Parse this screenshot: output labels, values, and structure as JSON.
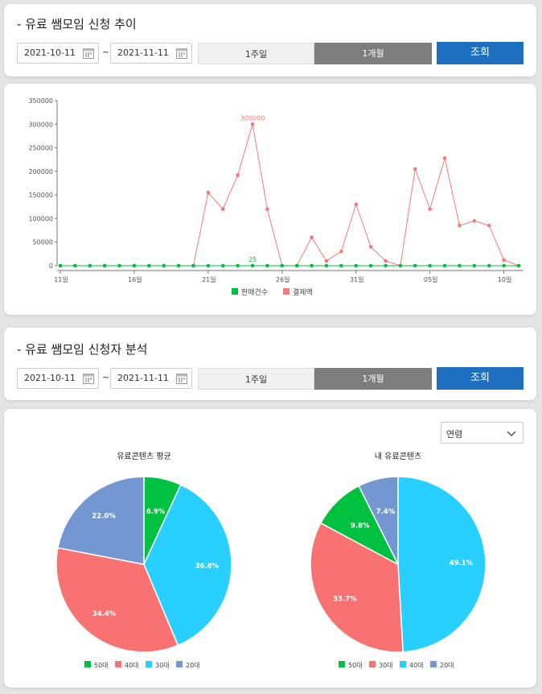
{
  "section1": {
    "title": "- 유료 쌤모임 신청 추이",
    "date_from": "2021-10-11",
    "date_to": "2021-11-11",
    "tilde": "~",
    "btn_week": "1주일",
    "btn_month": "1개월",
    "btn_search": "조회"
  },
  "section2": {
    "title": "- 유료 쌤모임 신청자 분석",
    "date_from": "2021-10-11",
    "date_to": "2021-11-11",
    "tilde": "~",
    "btn_week": "1주일",
    "btn_month": "1개월",
    "btn_search": "조회",
    "age_select": "연령"
  },
  "colors": {
    "sales_line": "#00c040",
    "payment_line": "#f47a7a",
    "pie_50": "#00c240",
    "pie_40": "#f97272",
    "pie_30": "#29cfff",
    "pie_20": "#7297d1",
    "accent": "#1f6fc0"
  },
  "chart_data": [
    {
      "type": "line",
      "x": [
        "10-11",
        "10-12",
        "10-13",
        "10-14",
        "10-15",
        "10-16",
        "10-17",
        "10-18",
        "10-19",
        "10-20",
        "10-21",
        "10-22",
        "10-23",
        "10-24",
        "10-25",
        "10-26",
        "10-27",
        "10-28",
        "10-29",
        "10-30",
        "10-31",
        "11-01",
        "11-02",
        "11-03",
        "11-04",
        "11-05",
        "11-06",
        "11-07",
        "11-08",
        "11-09",
        "11-10",
        "11-11"
      ],
      "xticks": [
        "11일",
        "16일",
        "21일",
        "26일",
        "31일",
        "05일",
        "10일"
      ],
      "xtick_index": [
        0,
        5,
        10,
        15,
        20,
        25,
        30
      ],
      "ylim": [
        0,
        350000
      ],
      "yticks": [
        0,
        50000,
        100000,
        150000,
        200000,
        250000,
        300000,
        350000
      ],
      "series": [
        {
          "name": "판매건수",
          "color": "#00c040",
          "values": [
            0,
            0,
            0,
            0,
            0,
            0,
            0,
            0,
            0,
            0,
            0,
            0,
            0,
            25,
            0,
            0,
            0,
            0,
            0,
            0,
            0,
            0,
            0,
            0,
            0,
            0,
            0,
            0,
            0,
            0,
            0,
            0
          ]
        },
        {
          "name": "결제액",
          "color": "#f47a7a",
          "values": [
            0,
            0,
            0,
            0,
            0,
            0,
            0,
            0,
            0,
            0,
            155000,
            120000,
            192000,
            300000,
            120000,
            0,
            0,
            60000,
            10000,
            30000,
            130000,
            40000,
            10000,
            0,
            205000,
            120000,
            228000,
            85000,
            95000,
            85000,
            12000,
            0
          ]
        }
      ],
      "annotations": [
        {
          "series": 1,
          "index": 13,
          "text": "300000"
        },
        {
          "series": 0,
          "index": 13,
          "text": "25"
        }
      ],
      "legend": "bottom"
    },
    {
      "type": "pie",
      "title": "유료콘텐츠 평균",
      "slices": [
        {
          "label": "50대",
          "value": 6.9,
          "text": "6.9%",
          "color": "#00c240"
        },
        {
          "label": "30대",
          "value": 36.8,
          "text": "36.8%",
          "color": "#29cfff"
        },
        {
          "label": "40대",
          "value": 34.4,
          "text": "34.4%",
          "color": "#f97272"
        },
        {
          "label": "20대",
          "value": 22.0,
          "text": "22.0%",
          "color": "#7297d1"
        }
      ],
      "legend": [
        {
          "label": "50대",
          "color": "#00c240"
        },
        {
          "label": "40대",
          "color": "#f97272"
        },
        {
          "label": "30대",
          "color": "#29cfff"
        },
        {
          "label": "20대",
          "color": "#7297d1"
        }
      ]
    },
    {
      "type": "pie",
      "title": "내 유료콘텐츠",
      "slices": [
        {
          "label": "40대",
          "value": 49.1,
          "text": "49.1%",
          "color": "#29cfff"
        },
        {
          "label": "30대",
          "value": 33.7,
          "text": "33.7%",
          "color": "#f97272"
        },
        {
          "label": "50대",
          "value": 9.8,
          "text": "9.8%",
          "color": "#00c240"
        },
        {
          "label": "20대",
          "value": 7.4,
          "text": "7.4%",
          "color": "#7297d1"
        }
      ],
      "legend": [
        {
          "label": "50대",
          "color": "#00c240"
        },
        {
          "label": "30대",
          "color": "#f97272"
        },
        {
          "label": "40대",
          "color": "#29cfff"
        },
        {
          "label": "20대",
          "color": "#7297d1"
        }
      ]
    }
  ]
}
